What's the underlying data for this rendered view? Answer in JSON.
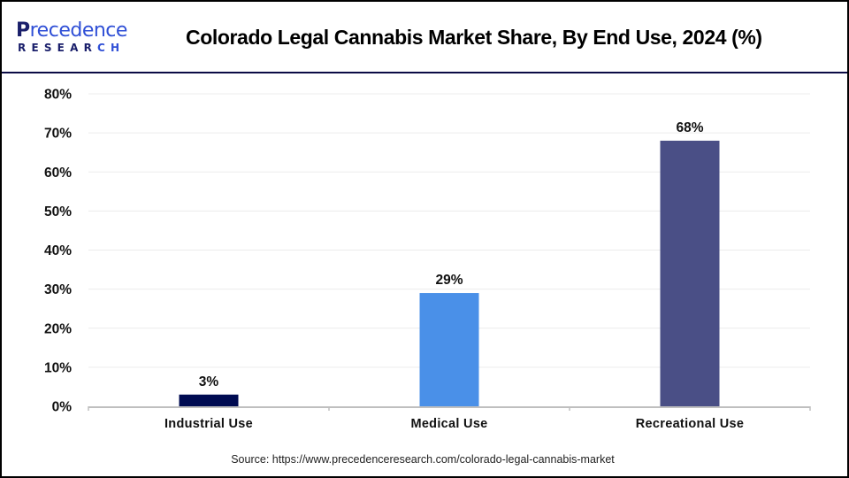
{
  "header": {
    "logo": {
      "line1_initial": "P",
      "line1_rest": "recedence",
      "line2_main": "RESEAR",
      "line2_accent": "CH",
      "icon": "leaf-p-logo-icon"
    },
    "title": "Colorado Legal Cannabis Market Share, By End Use, 2024 (%)"
  },
  "chart_data": {
    "type": "bar",
    "title": "Colorado Legal Cannabis Market Share, By End Use, 2024 (%)",
    "xlabel": "",
    "ylabel": "",
    "categories": [
      "Industrial Use",
      "Medical Use",
      "Recreational Use"
    ],
    "values": [
      3,
      29,
      68
    ],
    "data_labels": [
      "3%",
      "29%",
      "68%"
    ],
    "colors": [
      "#000b52",
      "#4a90e8",
      "#4a4f86"
    ],
    "ylim": [
      0,
      80
    ],
    "yticks": [
      0,
      10,
      20,
      30,
      40,
      50,
      60,
      70,
      80
    ],
    "ytick_labels": [
      "0%",
      "10%",
      "20%",
      "30%",
      "40%",
      "50%",
      "60%",
      "70%",
      "80%"
    ],
    "grid": true,
    "legend": "none",
    "gridline_color": "#ececec",
    "axis_color": "#bfbfbf"
  },
  "footer": {
    "source": "Source: https://www.precedenceresearch.com/colorado-legal-cannabis-market"
  }
}
